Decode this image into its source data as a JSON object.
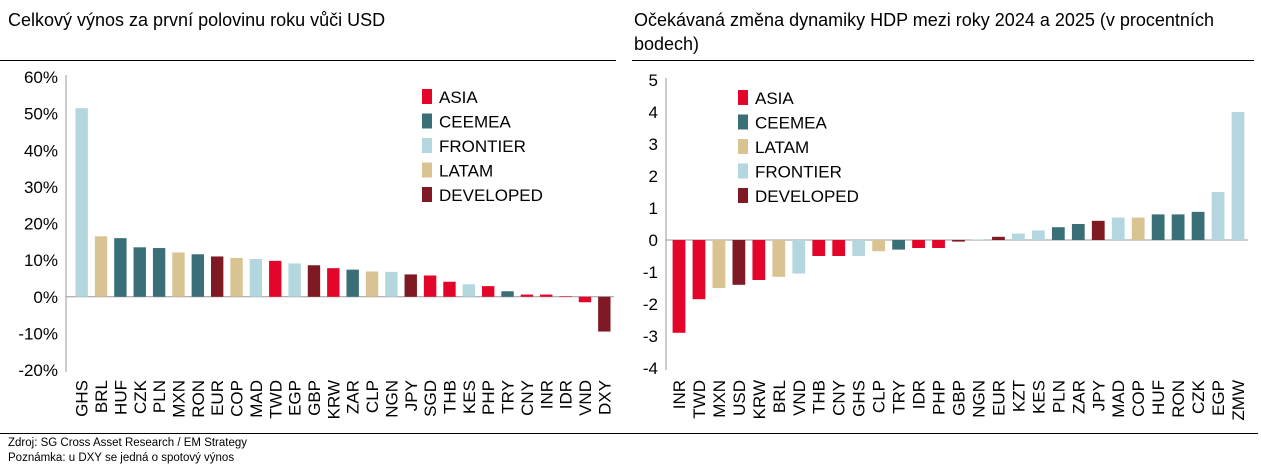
{
  "footer": {
    "source": "Zdroj: SG Cross Asset Research / EM Strategy",
    "note": "Poznámka: u DXY se jedná o spotový výnos"
  },
  "colors": {
    "ASIA": "#e4062a",
    "CEEMEA": "#3b6f78",
    "FRONTIER": "#b4d7df",
    "LATAM": "#d9c392",
    "DEVELOPED": "#7f1a24"
  },
  "chart_data": [
    {
      "type": "bar",
      "title": "Celkový výnos za první polovinu roku vůči USD",
      "xlabel": "",
      "ylabel": "",
      "ylim": [
        -20,
        60
      ],
      "yticks": [
        -20,
        -10,
        0,
        10,
        20,
        30,
        40,
        50,
        60
      ],
      "ytick_format": "percent",
      "legend": [
        "ASIA",
        "CEEMEA",
        "FRONTIER",
        "LATAM",
        "DEVELOPED"
      ],
      "legend_position": "top-right",
      "categories": [
        "GHS",
        "BRL",
        "HUF",
        "CZK",
        "PLN",
        "MXN",
        "RON",
        "EUR",
        "COP",
        "MAD",
        "TWD",
        "EGP",
        "GBP",
        "KRW",
        "ZAR",
        "CLP",
        "NGN",
        "JPY",
        "SGD",
        "THB",
        "KES",
        "PHP",
        "TRY",
        "CNY",
        "INR",
        "IDR",
        "VND",
        "DXY"
      ],
      "groups": [
        "FRONTIER",
        "LATAM",
        "CEEMEA",
        "CEEMEA",
        "CEEMEA",
        "LATAM",
        "CEEMEA",
        "DEVELOPED",
        "LATAM",
        "FRONTIER",
        "ASIA",
        "FRONTIER",
        "DEVELOPED",
        "ASIA",
        "CEEMEA",
        "LATAM",
        "FRONTIER",
        "DEVELOPED",
        "ASIA",
        "ASIA",
        "FRONTIER",
        "ASIA",
        "CEEMEA",
        "ASIA",
        "ASIA",
        "ASIA",
        "ASIA",
        "DEVELOPED"
      ],
      "values": [
        51.5,
        16.5,
        16.0,
        13.5,
        13.3,
        12.1,
        11.6,
        11.0,
        10.6,
        10.3,
        9.8,
        9.1,
        8.6,
        7.8,
        7.4,
        6.9,
        6.8,
        6.1,
        5.8,
        4.1,
        3.4,
        2.9,
        1.5,
        0.6,
        0.6,
        0.1,
        -1.5,
        -9.5
      ]
    },
    {
      "type": "bar",
      "title": "Očekávaná změna dynamiky HDP mezi roky 2024 a 2025 (v procentních bodech)",
      "xlabel": "",
      "ylabel": "",
      "ylim": [
        -4,
        5
      ],
      "yticks": [
        -4,
        -3,
        -2,
        -1,
        0,
        1,
        2,
        3,
        4,
        5
      ],
      "ytick_format": "plain",
      "legend": [
        "ASIA",
        "CEEMEA",
        "LATAM",
        "FRONTIER",
        "DEVELOPED"
      ],
      "legend_position": "top-left",
      "categories": [
        "INR",
        "TWD",
        "MXN",
        "USD",
        "KRW",
        "BRL",
        "VND",
        "THB",
        "CNY",
        "GHS",
        "CLP",
        "TRY",
        "IDR",
        "PHP",
        "GBP",
        "NGN",
        "EUR",
        "KZT",
        "KES",
        "PLN",
        "ZAR",
        "JPY",
        "MAD",
        "COP",
        "HUF",
        "RON",
        "CZK",
        "EGP",
        "ZMW"
      ],
      "groups": [
        "ASIA",
        "ASIA",
        "LATAM",
        "DEVELOPED",
        "ASIA",
        "LATAM",
        "FRONTIER",
        "ASIA",
        "ASIA",
        "FRONTIER",
        "LATAM",
        "CEEMEA",
        "ASIA",
        "ASIA",
        "DEVELOPED",
        "FRONTIER",
        "DEVELOPED",
        "FRONTIER",
        "FRONTIER",
        "CEEMEA",
        "CEEMEA",
        "DEVELOPED",
        "FRONTIER",
        "LATAM",
        "CEEMEA",
        "CEEMEA",
        "CEEMEA",
        "FRONTIER",
        "FRONTIER"
      ],
      "values": [
        -2.9,
        -1.85,
        -1.5,
        -1.4,
        -1.25,
        -1.15,
        -1.05,
        -0.5,
        -0.5,
        -0.5,
        -0.35,
        -0.3,
        -0.25,
        -0.25,
        -0.05,
        0.02,
        0.1,
        0.2,
        0.3,
        0.4,
        0.5,
        0.6,
        0.7,
        0.7,
        0.8,
        0.8,
        0.88,
        1.5,
        4.0
      ]
    }
  ]
}
